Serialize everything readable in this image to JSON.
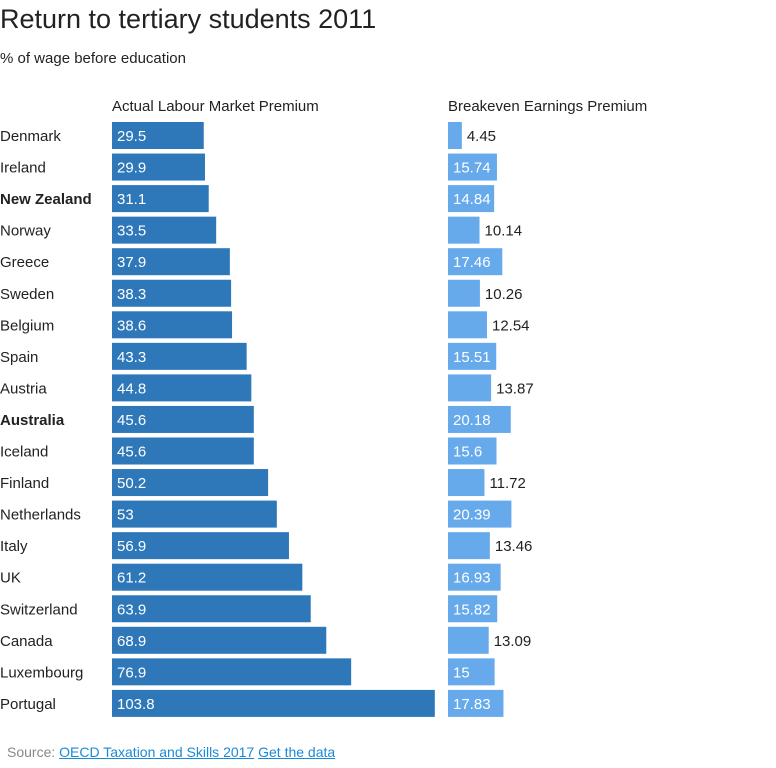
{
  "chart_data": {
    "type": "bar",
    "title": "Return to tertiary students 2011",
    "subtitle": "% of wage before education",
    "categories": [
      "Denmark",
      "Ireland",
      "New Zealand",
      "Norway",
      "Greece",
      "Sweden",
      "Belgium",
      "Spain",
      "Austria",
      "Australia",
      "Iceland",
      "Finland",
      "Netherlands",
      "Italy",
      "UK",
      "Switzerland",
      "Canada",
      "Luxembourg",
      "Portugal"
    ],
    "highlighted": [
      "New Zealand",
      "Australia"
    ],
    "series": [
      {
        "name": "Actual Labour Market Premium",
        "color": "#2e78b9",
        "values": [
          29.5,
          29.9,
          31.1,
          33.5,
          37.9,
          38.3,
          38.6,
          43.3,
          44.8,
          45.6,
          45.6,
          50.2,
          53,
          56.9,
          61.2,
          63.9,
          68.9,
          76.9,
          103.8
        ]
      },
      {
        "name": "Breakeven Earnings Premium",
        "color": "#67aaec",
        "values": [
          4.45,
          15.74,
          14.84,
          10.14,
          17.46,
          10.26,
          12.54,
          15.51,
          13.87,
          20.18,
          15.6,
          11.72,
          20.39,
          13.46,
          16.93,
          15.82,
          13.09,
          15,
          17.83
        ]
      }
    ],
    "xlabel": "",
    "ylabel": ""
  },
  "source": {
    "label": "Source:",
    "link_text": "OECD Taxation and Skills 2017",
    "data_link_text": "Get the data"
  }
}
